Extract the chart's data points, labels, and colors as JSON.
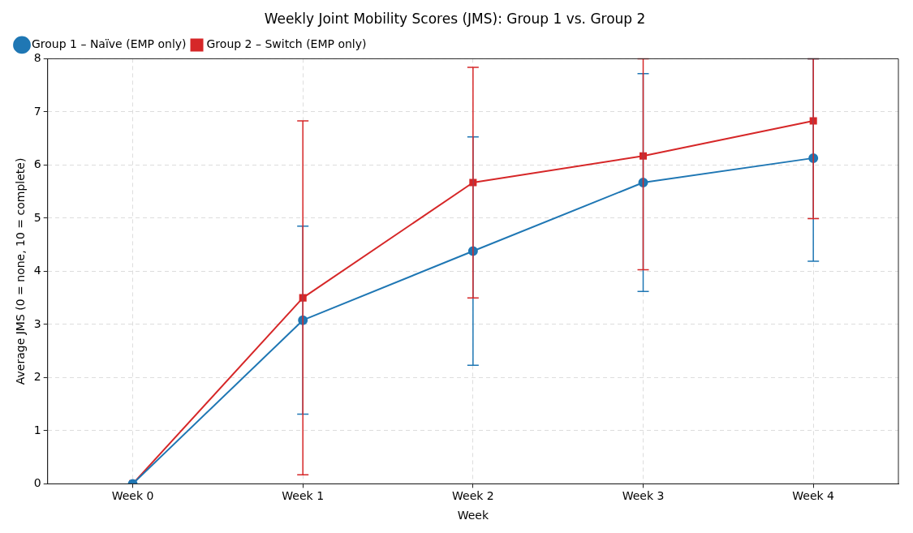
{
  "chart_data": {
    "type": "line",
    "title": "Weekly Joint Mobility Scores (JMS): Group 1 vs. Group 2",
    "xlabel": "Week",
    "ylabel": "Average JMS (0 = none, 10 = complete)",
    "categories": [
      "Week 0",
      "Week 1",
      "Week 2",
      "Week 3",
      "Week 4"
    ],
    "series": [
      {
        "name": "Group 1 – Naïve (EMP only)",
        "color": "#1f77b4",
        "marker": "circle",
        "values": [
          0,
          3.08,
          4.38,
          5.67,
          6.13
        ],
        "errors": [
          null,
          1.77,
          2.15,
          2.05,
          [
            4.19,
            8
          ]
        ]
      },
      {
        "name": "Group 2 – Switch (EMP only)",
        "color": "#d62728",
        "marker": "square",
        "values": [
          0,
          3.5,
          5.67,
          6.17,
          6.83
        ],
        "errors": [
          null,
          3.33,
          2.17,
          [
            4.03,
            8
          ],
          [
            4.99,
            8
          ]
        ]
      }
    ],
    "ylim": [
      0,
      8
    ],
    "yticks": [
      0,
      1,
      2,
      3,
      4,
      5,
      6,
      7,
      8
    ],
    "grid": true,
    "legend": "top left",
    "line_style": "solid"
  }
}
